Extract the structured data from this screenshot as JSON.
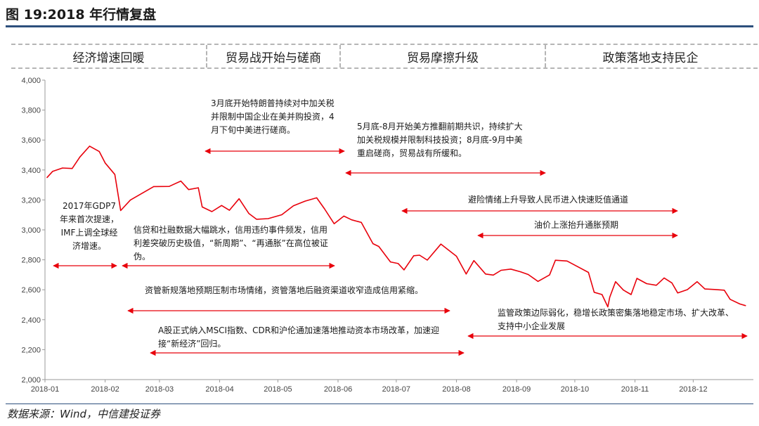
{
  "title": "图 19:2018 年行情复盘",
  "phases": [
    {
      "label": "经济增速回暖"
    },
    {
      "label": "贸易战开始与磋商"
    },
    {
      "label": "贸易摩擦升级"
    },
    {
      "label": "政策落地支持民企"
    }
  ],
  "annotations": {
    "a1": "2017年GDP7年来首次提速，IMF上调全球经济增速。",
    "a2": "3月底开始特朗普持续对中加关税并限制中国企业在美并购投资，4月下旬中美进行磋商。",
    "a3": "5月底-8月开始美方推翻前期共识，持续扩大加关税规模并限制科技投资；8月底-9月中美重启磋商，贸易战有所缓和。",
    "a4": "避险情绪上升导致人民币进入快速贬值通道",
    "a5": "油价上涨抬升通胀预期",
    "a6": "信贷和社融数据大幅跳水，信用违约事件频发，信用利差突破历史极值，“新周期”、“再通胀”在高位被证伪。",
    "a7": "资管新规落地预期压制市场情绪，资管落地后融资渠道收窄造成信用紧缩。",
    "a8": "监管政策边际弱化，稳增长政策密集落地稳定市场、扩大改革、支持中小企业发展",
    "a9": "A股正式纳入MSCI指数、CDR和沪伦通加速落地推动资本市场改革，加速迎接“新经济”回归。"
  },
  "source": "数据来源：Wind，中信建投证券",
  "colors": {
    "line": "#e8000b",
    "accent": "#2d4f7c",
    "grid": "#b5b5b5"
  },
  "chart_data": {
    "type": "line",
    "ylim": [
      2000,
      4000
    ],
    "yticks": [
      "2,000",
      "2,200",
      "2,400",
      "2,600",
      "2,800",
      "3,000",
      "3,200",
      "3,400",
      "3,600",
      "3,800",
      "4,000"
    ],
    "xticks": [
      "2018-01",
      "2018-02",
      "2018-03",
      "2018-04",
      "2018-05",
      "2018-06",
      "2018-07",
      "2018-08",
      "2018-09",
      "2018-10",
      "2018-11",
      "2018-12"
    ],
    "series": [
      {
        "values": [
          [
            "2018-01-02",
            3349
          ],
          [
            "2018-01-05",
            3391
          ],
          [
            "2018-01-10",
            3413
          ],
          [
            "2018-01-15",
            3410
          ],
          [
            "2018-01-19",
            3487
          ],
          [
            "2018-01-24",
            3559
          ],
          [
            "2018-01-29",
            3523
          ],
          [
            "2018-02-01",
            3447
          ],
          [
            "2018-02-06",
            3370
          ],
          [
            "2018-02-09",
            3129
          ],
          [
            "2018-02-14",
            3199
          ],
          [
            "2018-02-26",
            3289
          ],
          [
            "2018-03-06",
            3290
          ],
          [
            "2018-03-12",
            3326
          ],
          [
            "2018-03-16",
            3269
          ],
          [
            "2018-03-21",
            3281
          ],
          [
            "2018-03-23",
            3153
          ],
          [
            "2018-03-28",
            3122
          ],
          [
            "2018-04-02",
            3163
          ],
          [
            "2018-04-06",
            3131
          ],
          [
            "2018-04-11",
            3208
          ],
          [
            "2018-04-16",
            3110
          ],
          [
            "2018-04-20",
            3071
          ],
          [
            "2018-04-26",
            3075
          ],
          [
            "2018-05-03",
            3101
          ],
          [
            "2018-05-09",
            3161
          ],
          [
            "2018-05-15",
            3192
          ],
          [
            "2018-05-21",
            3214
          ],
          [
            "2018-05-25",
            3141
          ],
          [
            "2018-05-30",
            3041
          ],
          [
            "2018-06-04",
            3092
          ],
          [
            "2018-06-08",
            3067
          ],
          [
            "2018-06-13",
            3050
          ],
          [
            "2018-06-19",
            2908
          ],
          [
            "2018-06-22",
            2889
          ],
          [
            "2018-06-28",
            2786
          ],
          [
            "2018-07-02",
            2775
          ],
          [
            "2018-07-05",
            2733
          ],
          [
            "2018-07-10",
            2827
          ],
          [
            "2018-07-13",
            2831
          ],
          [
            "2018-07-17",
            2798
          ],
          [
            "2018-07-24",
            2905
          ],
          [
            "2018-07-27",
            2874
          ],
          [
            "2018-08-01",
            2824
          ],
          [
            "2018-08-06",
            2705
          ],
          [
            "2018-08-10",
            2795
          ],
          [
            "2018-08-16",
            2705
          ],
          [
            "2018-08-20",
            2698
          ],
          [
            "2018-08-24",
            2730
          ],
          [
            "2018-08-29",
            2738
          ],
          [
            "2018-09-03",
            2720
          ],
          [
            "2018-09-07",
            2702
          ],
          [
            "2018-09-12",
            2656
          ],
          [
            "2018-09-18",
            2699
          ],
          [
            "2018-09-21",
            2797
          ],
          [
            "2018-09-27",
            2792
          ],
          [
            "2018-10-08",
            2716
          ],
          [
            "2018-10-11",
            2583
          ],
          [
            "2018-10-15",
            2568
          ],
          [
            "2018-10-18",
            2486
          ],
          [
            "2018-10-19",
            2550
          ],
          [
            "2018-10-22",
            2654
          ],
          [
            "2018-10-26",
            2598
          ],
          [
            "2018-10-30",
            2568
          ],
          [
            "2018-11-02",
            2676
          ],
          [
            "2018-11-07",
            2641
          ],
          [
            "2018-11-12",
            2630
          ],
          [
            "2018-11-16",
            2679
          ],
          [
            "2018-11-20",
            2646
          ],
          [
            "2018-11-23",
            2579
          ],
          [
            "2018-11-28",
            2601
          ],
          [
            "2018-12-03",
            2654
          ],
          [
            "2018-12-07",
            2605
          ],
          [
            "2018-12-12",
            2602
          ],
          [
            "2018-12-17",
            2597
          ],
          [
            "2018-12-20",
            2536
          ],
          [
            "2018-12-25",
            2505
          ],
          [
            "2018-12-28",
            2494
          ]
        ]
      }
    ]
  }
}
